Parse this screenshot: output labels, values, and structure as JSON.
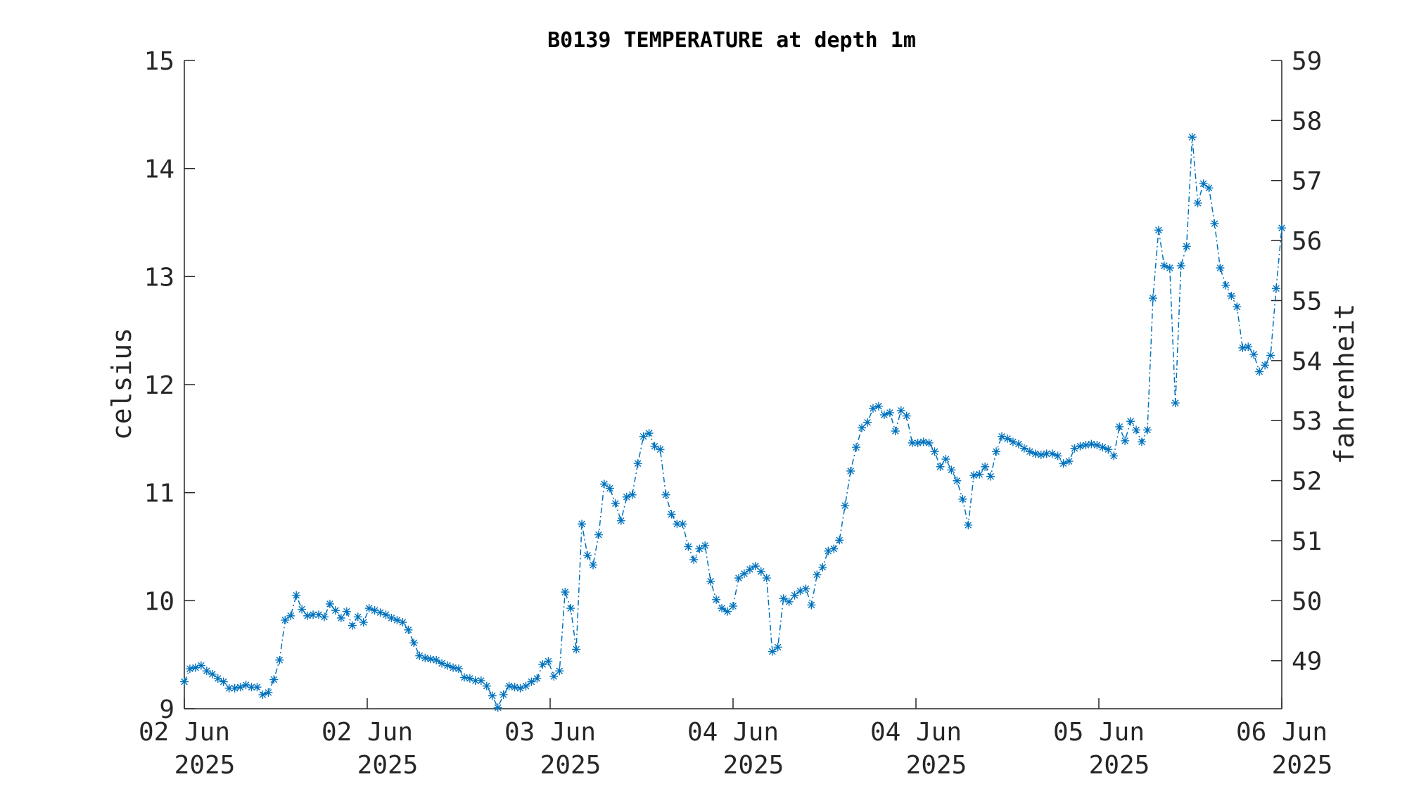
{
  "chart_data": {
    "type": "line",
    "title": "B0139 TEMPERATURE at depth 1m",
    "ylabel": "celsius",
    "ylabel_right": "fahrenheit",
    "xlabel": "",
    "x_tick_labels": [
      {
        "day": "02 Jun",
        "year": "2025"
      },
      {
        "day": "02 Jun",
        "year": "2025"
      },
      {
        "day": "03 Jun",
        "year": "2025"
      },
      {
        "day": "04 Jun",
        "year": "2025"
      },
      {
        "day": "04 Jun",
        "year": "2025"
      },
      {
        "day": "05 Jun",
        "year": "2025"
      },
      {
        "day": "06 Jun",
        "year": "2025"
      }
    ],
    "y_ticks": [
      "9",
      "10",
      "11",
      "12",
      "13",
      "14",
      "15"
    ],
    "ylim": [
      9,
      15
    ],
    "y2_ticks": [
      "49",
      "50",
      "51",
      "52",
      "53",
      "54",
      "55",
      "56",
      "57",
      "58",
      "59"
    ],
    "series_color": "#0072BD",
    "marker": "asterisk",
    "line_style": "dash-dot",
    "grid": false,
    "legend": "none",
    "series": [
      {
        "values": [
          9.25,
          9.37,
          9.38,
          9.4,
          9.35,
          9.32,
          9.28,
          9.25,
          9.19,
          9.19,
          9.2,
          9.22,
          9.2,
          9.2,
          9.13,
          9.15,
          9.27,
          9.45,
          9.82,
          9.86,
          10.05,
          9.92,
          9.86,
          9.87,
          9.87,
          9.85,
          9.97,
          9.91,
          9.84,
          9.9,
          9.77,
          9.85,
          9.8,
          9.93,
          9.91,
          9.89,
          9.87,
          9.84,
          9.82,
          9.8,
          9.73,
          9.61,
          9.49,
          9.47,
          9.46,
          9.45,
          9.42,
          9.4,
          9.38,
          9.37,
          9.29,
          9.28,
          9.26,
          9.26,
          9.21,
          9.12,
          9.01,
          9.13,
          9.21,
          9.2,
          9.19,
          9.21,
          9.25,
          9.28,
          9.41,
          9.44,
          9.3,
          9.35,
          10.08,
          9.93,
          9.55,
          10.71,
          10.42,
          10.33,
          10.61,
          11.08,
          11.04,
          10.9,
          10.74,
          10.96,
          10.98,
          11.27,
          11.52,
          11.55,
          11.43,
          11.4,
          10.98,
          10.8,
          10.71,
          10.71,
          10.5,
          10.38,
          10.48,
          10.51,
          10.18,
          10.01,
          9.93,
          9.9,
          9.95,
          10.21,
          10.25,
          10.29,
          10.32,
          10.27,
          10.21,
          9.53,
          9.57,
          10.02,
          9.99,
          10.05,
          10.09,
          10.11,
          9.96,
          10.24,
          10.31,
          10.46,
          10.48,
          10.56,
          10.88,
          11.2,
          11.42,
          11.6,
          11.65,
          11.78,
          11.8,
          11.72,
          11.74,
          11.57,
          11.76,
          11.71,
          11.46,
          11.46,
          11.47,
          11.46,
          11.38,
          11.24,
          11.31,
          11.21,
          11.11,
          10.94,
          10.7,
          11.16,
          11.17,
          11.24,
          11.15,
          11.38,
          11.52,
          11.5,
          11.47,
          11.45,
          11.41,
          11.38,
          11.36,
          11.35,
          11.36,
          11.36,
          11.34,
          11.27,
          11.29,
          11.41,
          11.43,
          11.44,
          11.45,
          11.44,
          11.42,
          11.4,
          11.34,
          11.61,
          11.48,
          11.66,
          11.58,
          11.47,
          11.58,
          12.8,
          13.43,
          13.1,
          13.08,
          11.83,
          13.1,
          13.28,
          14.29,
          13.68,
          13.86,
          13.82,
          13.49,
          13.08,
          12.92,
          12.82,
          12.72,
          12.34,
          12.35,
          12.28,
          12.12,
          12.18,
          12.27,
          12.89,
          13.45
        ]
      }
    ]
  }
}
